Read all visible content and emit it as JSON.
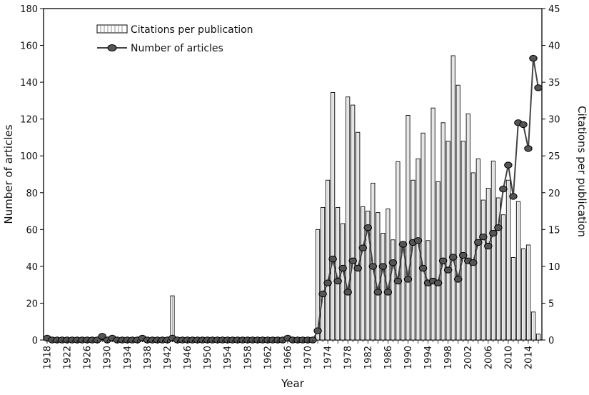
{
  "chart_data": {
    "type": "bar",
    "xlabel": "Year",
    "ylabel_left": "Number of articles",
    "ylabel_right": "Citations per publication",
    "ylim_left": [
      0,
      180
    ],
    "ylim_right": [
      0,
      45
    ],
    "yticks_left": [
      "0",
      "20",
      "40",
      "60",
      "80",
      "100",
      "120",
      "140",
      "160",
      "180"
    ],
    "yticks_right": [
      "0",
      "5",
      "10",
      "15",
      "20",
      "25",
      "30",
      "35",
      "40",
      "45"
    ],
    "xlim": [
      1918,
      2016
    ],
    "xtick_labels": [
      "1918",
      "1922",
      "1926",
      "1930",
      "1934",
      "1938",
      "1942",
      "1946",
      "1950",
      "1954",
      "1958",
      "1962",
      "1966",
      "1970",
      "1974",
      "1978",
      "1982",
      "1986",
      "1990",
      "1994",
      "1998",
      "2002",
      "2006",
      "2010",
      "2014"
    ],
    "legend": {
      "bar": "Citations per publication",
      "line": "Number of articles"
    },
    "grid": false,
    "series": [
      {
        "name": "Citations per publication",
        "type": "bar",
        "axis": "right",
        "points": [
          {
            "x": 1943,
            "y": 6
          },
          {
            "x": 1972,
            "y": 15
          },
          {
            "x": 1973,
            "y": 18
          },
          {
            "x": 1974,
            "y": 21.7
          },
          {
            "x": 1975,
            "y": 33.6
          },
          {
            "x": 1976,
            "y": 18
          },
          {
            "x": 1977,
            "y": 15.8
          },
          {
            "x": 1978,
            "y": 33
          },
          {
            "x": 1979,
            "y": 31.9
          },
          {
            "x": 1980,
            "y": 28.2
          },
          {
            "x": 1981,
            "y": 18.1
          },
          {
            "x": 1982,
            "y": 17.5
          },
          {
            "x": 1983,
            "y": 21.3
          },
          {
            "x": 1984,
            "y": 17.3
          },
          {
            "x": 1985,
            "y": 14.5
          },
          {
            "x": 1986,
            "y": 17.8
          },
          {
            "x": 1987,
            "y": 13.6
          },
          {
            "x": 1988,
            "y": 24.2
          },
          {
            "x": 1989,
            "y": 13
          },
          {
            "x": 1990,
            "y": 30.5
          },
          {
            "x": 1991,
            "y": 21.7
          },
          {
            "x": 1992,
            "y": 24.6
          },
          {
            "x": 1993,
            "y": 28.1
          },
          {
            "x": 1994,
            "y": 13.5
          },
          {
            "x": 1995,
            "y": 31.5
          },
          {
            "x": 1996,
            "y": 21.5
          },
          {
            "x": 1997,
            "y": 29.5
          },
          {
            "x": 1998,
            "y": 27
          },
          {
            "x": 1999,
            "y": 38.6
          },
          {
            "x": 2000,
            "y": 34.6
          },
          {
            "x": 2001,
            "y": 27
          },
          {
            "x": 2002,
            "y": 30.7
          },
          {
            "x": 2003,
            "y": 22.7
          },
          {
            "x": 2004,
            "y": 24.6
          },
          {
            "x": 2005,
            "y": 19
          },
          {
            "x": 2006,
            "y": 20.6
          },
          {
            "x": 2007,
            "y": 24.3
          },
          {
            "x": 2008,
            "y": 19.3
          },
          {
            "x": 2009,
            "y": 17
          },
          {
            "x": 2010,
            "y": 21.7
          },
          {
            "x": 2011,
            "y": 11.2
          },
          {
            "x": 2012,
            "y": 18.8
          },
          {
            "x": 2013,
            "y": 12.4
          },
          {
            "x": 2014,
            "y": 12.9
          },
          {
            "x": 2015,
            "y": 3.8
          },
          {
            "x": 2016,
            "y": 0.8
          }
        ]
      },
      {
        "name": "Number of articles",
        "type": "line",
        "axis": "left",
        "points": [
          {
            "x": 1918,
            "y": 1
          },
          {
            "x": 1919,
            "y": 0
          },
          {
            "x": 1920,
            "y": 0
          },
          {
            "x": 1921,
            "y": 0
          },
          {
            "x": 1922,
            "y": 0
          },
          {
            "x": 1923,
            "y": 0
          },
          {
            "x": 1924,
            "y": 0
          },
          {
            "x": 1925,
            "y": 0
          },
          {
            "x": 1926,
            "y": 0
          },
          {
            "x": 1927,
            "y": 0
          },
          {
            "x": 1928,
            "y": 0
          },
          {
            "x": 1929,
            "y": 2
          },
          {
            "x": 1930,
            "y": 0
          },
          {
            "x": 1931,
            "y": 1
          },
          {
            "x": 1932,
            "y": 0
          },
          {
            "x": 1933,
            "y": 0
          },
          {
            "x": 1934,
            "y": 0
          },
          {
            "x": 1935,
            "y": 0
          },
          {
            "x": 1936,
            "y": 0
          },
          {
            "x": 1937,
            "y": 1
          },
          {
            "x": 1938,
            "y": 0
          },
          {
            "x": 1939,
            "y": 0
          },
          {
            "x": 1940,
            "y": 0
          },
          {
            "x": 1941,
            "y": 0
          },
          {
            "x": 1942,
            "y": 0
          },
          {
            "x": 1943,
            "y": 1
          },
          {
            "x": 1944,
            "y": 0
          },
          {
            "x": 1945,
            "y": 0
          },
          {
            "x": 1946,
            "y": 0
          },
          {
            "x": 1947,
            "y": 0
          },
          {
            "x": 1948,
            "y": 0
          },
          {
            "x": 1949,
            "y": 0
          },
          {
            "x": 1950,
            "y": 0
          },
          {
            "x": 1951,
            "y": 0
          },
          {
            "x": 1952,
            "y": 0
          },
          {
            "x": 1953,
            "y": 0
          },
          {
            "x": 1954,
            "y": 0
          },
          {
            "x": 1955,
            "y": 0
          },
          {
            "x": 1956,
            "y": 0
          },
          {
            "x": 1957,
            "y": 0
          },
          {
            "x": 1958,
            "y": 0
          },
          {
            "x": 1959,
            "y": 0
          },
          {
            "x": 1960,
            "y": 0
          },
          {
            "x": 1961,
            "y": 0
          },
          {
            "x": 1962,
            "y": 0
          },
          {
            "x": 1963,
            "y": 0
          },
          {
            "x": 1964,
            "y": 0
          },
          {
            "x": 1965,
            "y": 0
          },
          {
            "x": 1966,
            "y": 1
          },
          {
            "x": 1967,
            "y": 0
          },
          {
            "x": 1968,
            "y": 0
          },
          {
            "x": 1969,
            "y": 0
          },
          {
            "x": 1970,
            "y": 0
          },
          {
            "x": 1971,
            "y": 0
          },
          {
            "x": 1972,
            "y": 5
          },
          {
            "x": 1973,
            "y": 25
          },
          {
            "x": 1974,
            "y": 31
          },
          {
            "x": 1975,
            "y": 44
          },
          {
            "x": 1976,
            "y": 32
          },
          {
            "x": 1977,
            "y": 39
          },
          {
            "x": 1978,
            "y": 26
          },
          {
            "x": 1979,
            "y": 43
          },
          {
            "x": 1980,
            "y": 39
          },
          {
            "x": 1981,
            "y": 50
          },
          {
            "x": 1982,
            "y": 61
          },
          {
            "x": 1983,
            "y": 40
          },
          {
            "x": 1984,
            "y": 26
          },
          {
            "x": 1985,
            "y": 40
          },
          {
            "x": 1986,
            "y": 26
          },
          {
            "x": 1987,
            "y": 42
          },
          {
            "x": 1988,
            "y": 32
          },
          {
            "x": 1989,
            "y": 52
          },
          {
            "x": 1990,
            "y": 33
          },
          {
            "x": 1991,
            "y": 53
          },
          {
            "x": 1992,
            "y": 54
          },
          {
            "x": 1993,
            "y": 39
          },
          {
            "x": 1994,
            "y": 31
          },
          {
            "x": 1995,
            "y": 32
          },
          {
            "x": 1996,
            "y": 31
          },
          {
            "x": 1997,
            "y": 43
          },
          {
            "x": 1998,
            "y": 38
          },
          {
            "x": 1999,
            "y": 45
          },
          {
            "x": 2000,
            "y": 33
          },
          {
            "x": 2001,
            "y": 46
          },
          {
            "x": 2002,
            "y": 43
          },
          {
            "x": 2003,
            "y": 42
          },
          {
            "x": 2004,
            "y": 53
          },
          {
            "x": 2005,
            "y": 56
          },
          {
            "x": 2006,
            "y": 51
          },
          {
            "x": 2007,
            "y": 58
          },
          {
            "x": 2008,
            "y": 61
          },
          {
            "x": 2009,
            "y": 82
          },
          {
            "x": 2010,
            "y": 95
          },
          {
            "x": 2011,
            "y": 78
          },
          {
            "x": 2012,
            "y": 118
          },
          {
            "x": 2013,
            "y": 117
          },
          {
            "x": 2014,
            "y": 104
          },
          {
            "x": 2015,
            "y": 153
          },
          {
            "x": 2016,
            "y": 137
          }
        ]
      }
    ]
  }
}
